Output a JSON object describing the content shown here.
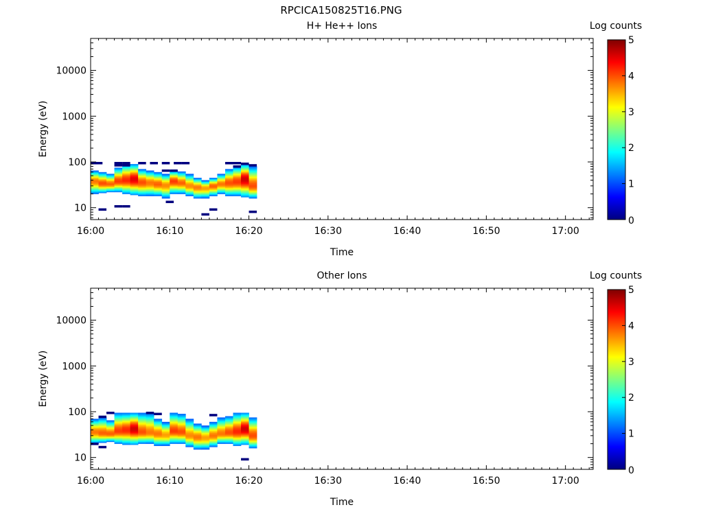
{
  "page_title": "RPCICA150825T16.PNG",
  "chart_data": [
    {
      "type": "heatmap",
      "title": "H+ He++ Ions",
      "xlabel": "Time",
      "ylabel": "Energy (eV)",
      "x_ticks": [
        "16:00",
        "16:10",
        "16:20",
        "16:30",
        "16:40",
        "16:50",
        "17:00"
      ],
      "xlim_minutes": [
        0,
        63.5
      ],
      "y_scale": "log",
      "y_ticks": [
        "10",
        "100",
        "1000",
        "10000"
      ],
      "ylim": [
        5.5,
        50000
      ],
      "colorbar": {
        "label": "Log counts",
        "range": [
          0,
          5
        ],
        "ticks": [
          "0",
          "1",
          "2",
          "3",
          "4",
          "5"
        ],
        "colormap": "jet"
      },
      "time_bins_minutes": [
        0,
        1,
        2,
        3,
        4,
        5,
        6,
        7,
        8,
        9,
        10,
        11,
        12,
        13,
        14,
        15,
        16,
        17,
        18,
        19,
        20
      ],
      "bins_center_ev": [
        38,
        34,
        33,
        38,
        40,
        42,
        36,
        35,
        33,
        31,
        38,
        35,
        30,
        28,
        27,
        30,
        33,
        35,
        37,
        42,
        30
      ],
      "bins_peak_log": [
        3.8,
        4.0,
        3.9,
        4.1,
        4.2,
        4.5,
        4.0,
        3.8,
        3.9,
        3.7,
        4.1,
        3.9,
        3.7,
        3.8,
        3.6,
        3.9,
        3.8,
        4.0,
        4.1,
        4.6,
        4.0
      ],
      "bins_min_ev": [
        20,
        21,
        22,
        22,
        20,
        19,
        18,
        18,
        18,
        16,
        20,
        20,
        18,
        16,
        16,
        18,
        20,
        18,
        18,
        17,
        16
      ],
      "bins_max_ev": [
        65,
        60,
        55,
        75,
        90,
        90,
        70,
        65,
        60,
        55,
        65,
        62,
        55,
        45,
        40,
        45,
        55,
        70,
        80,
        90,
        80
      ],
      "sparse_marks": [
        {
          "t": 0.5,
          "ev": 95
        },
        {
          "t": 1.0,
          "ev": 95
        },
        {
          "t": 3.5,
          "ev": 95
        },
        {
          "t": 4.5,
          "ev": 95
        },
        {
          "t": 6.5,
          "ev": 95
        },
        {
          "t": 8.0,
          "ev": 95
        },
        {
          "t": 9.5,
          "ev": 95
        },
        {
          "t": 11.0,
          "ev": 95
        },
        {
          "t": 12.0,
          "ev": 95
        },
        {
          "t": 17.5,
          "ev": 95
        },
        {
          "t": 18.5,
          "ev": 95
        },
        {
          "t": 19.5,
          "ev": 92
        },
        {
          "t": 3.5,
          "ev": 85
        },
        {
          "t": 4.5,
          "ev": 85
        },
        {
          "t": 9.5,
          "ev": 65
        },
        {
          "t": 10.5,
          "ev": 65
        },
        {
          "t": 18.5,
          "ev": 80
        },
        {
          "t": 20.5,
          "ev": 85
        },
        {
          "t": 1.5,
          "ev": 9.2
        },
        {
          "t": 3.5,
          "ev": 10.8
        },
        {
          "t": 4.5,
          "ev": 10.8
        },
        {
          "t": 10.0,
          "ev": 13.5
        },
        {
          "t": 14.5,
          "ev": 7.2
        },
        {
          "t": 15.5,
          "ev": 9.2
        },
        {
          "t": 20.5,
          "ev": 8.2
        }
      ]
    },
    {
      "type": "heatmap",
      "title": "Other Ions",
      "xlabel": "Time",
      "ylabel": "Energy (eV)",
      "x_ticks": [
        "16:00",
        "16:10",
        "16:20",
        "16:30",
        "16:40",
        "16:50",
        "17:00"
      ],
      "xlim_minutes": [
        0,
        63.5
      ],
      "y_scale": "log",
      "y_ticks": [
        "10",
        "100",
        "1000",
        "10000"
      ],
      "ylim": [
        5.5,
        50000
      ],
      "colorbar": {
        "label": "Log counts",
        "range": [
          0,
          5
        ],
        "ticks": [
          "0",
          "1",
          "2",
          "3",
          "4",
          "5"
        ],
        "colormap": "jet"
      },
      "time_bins_minutes": [
        0,
        1,
        2,
        3,
        4,
        5,
        6,
        7,
        8,
        9,
        10,
        11,
        12,
        13,
        14,
        15,
        16,
        17,
        18,
        19,
        20
      ],
      "bins_center_ev": [
        36,
        34,
        33,
        38,
        40,
        42,
        36,
        35,
        33,
        31,
        38,
        36,
        30,
        28,
        27,
        30,
        33,
        35,
        37,
        42,
        30
      ],
      "bins_peak_log": [
        3.8,
        3.9,
        3.9,
        4.1,
        4.2,
        4.6,
        4.0,
        3.8,
        3.8,
        3.6,
        4.1,
        4.0,
        3.7,
        3.8,
        3.6,
        3.8,
        3.8,
        4.0,
        4.2,
        4.6,
        4.0
      ],
      "bins_min_ev": [
        20,
        21,
        22,
        20,
        19,
        19,
        20,
        20,
        18,
        18,
        20,
        20,
        17,
        15,
        15,
        17,
        20,
        20,
        18,
        19,
        16
      ],
      "bins_max_ev": [
        70,
        75,
        65,
        95,
        95,
        95,
        95,
        95,
        70,
        60,
        95,
        90,
        70,
        55,
        50,
        60,
        75,
        80,
        95,
        95,
        75
      ],
      "sparse_marks": [
        {
          "t": 1.5,
          "ev": 78
        },
        {
          "t": 2.5,
          "ev": 95
        },
        {
          "t": 7.5,
          "ev": 95
        },
        {
          "t": 8.5,
          "ev": 90
        },
        {
          "t": 15.5,
          "ev": 85
        },
        {
          "t": 0.5,
          "ev": 20
        },
        {
          "t": 1.5,
          "ev": 17
        },
        {
          "t": 19.5,
          "ev": 9.2
        }
      ]
    }
  ]
}
